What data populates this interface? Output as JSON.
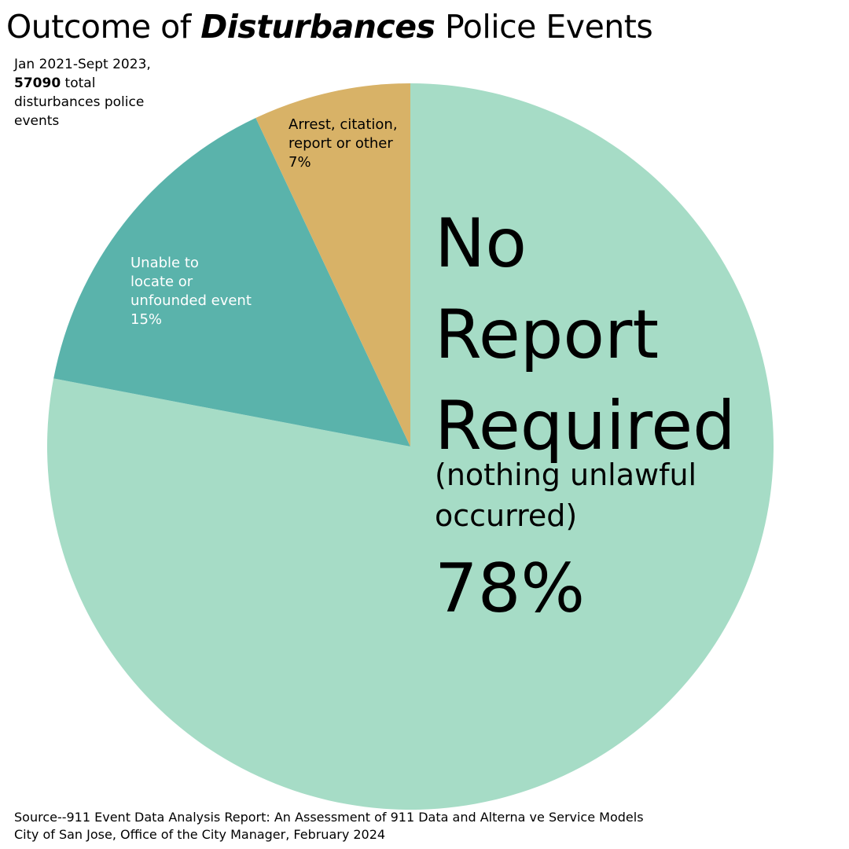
{
  "title": {
    "prefix": "Outcome of ",
    "emphasis": "Disturbances",
    "suffix": " Police Events"
  },
  "subtitle": {
    "period": "Jan 2021-Sept 2023,",
    "total": "57090",
    "total_suffix": " total disturbances police events"
  },
  "chart_data": {
    "type": "pie",
    "title": "Outcome of Disturbances Police Events",
    "start": "12 o'clock, clockwise",
    "slices": [
      {
        "name": "No Report Required",
        "lines": [
          "No",
          "Report",
          "Required"
        ],
        "note_lines": [
          "(nothing unlawful",
          "occurred)"
        ],
        "percent_label": "78%",
        "value": 78,
        "color": "#a6dcc6",
        "text_color": "#000000",
        "label_style": "large"
      },
      {
        "name": "Unable to locate or unfounded event",
        "lines": [
          "Unable to",
          "locate or",
          "unfounded event"
        ],
        "note_lines": [],
        "percent_label": "15%",
        "value": 15,
        "color": "#5ab3ab",
        "text_color": "#ffffff",
        "label_style": "small"
      },
      {
        "name": "Arrest, citation, report or other",
        "lines": [
          "Arrest, citation,",
          "report or other"
        ],
        "note_lines": [],
        "percent_label": "7%",
        "value": 7,
        "color": "#d8b267",
        "text_color": "#000000",
        "label_style": "small"
      }
    ]
  },
  "source": {
    "line1": "Source--911 Event Data Analysis Report: An Assessment of 911 Data and Alterna ve Service Models",
    "line2": "City of San Jose, Office of the City Manager, February 2024"
  }
}
